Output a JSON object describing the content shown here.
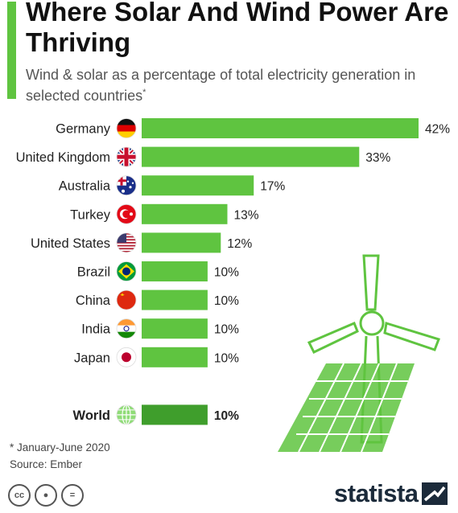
{
  "header": {
    "title": "Where Solar And Wind Power Are Thriving",
    "subtitle": "Wind & solar as a percentage of total electricity generation in selected countries",
    "subtitle_mark": "*"
  },
  "chart_data": {
    "type": "bar",
    "orientation": "horizontal",
    "unit": "%",
    "categories": [
      "Germany",
      "United Kingdom",
      "Australia",
      "Turkey",
      "United States",
      "Brazil",
      "China",
      "India",
      "Japan",
      "World"
    ],
    "values": [
      42,
      33,
      17,
      13,
      12,
      10,
      10,
      10,
      10,
      10
    ],
    "value_labels": [
      "42%",
      "33%",
      "17%",
      "13%",
      "12%",
      "10%",
      "10%",
      "10%",
      "10%",
      "10%"
    ],
    "flag_icons": [
      "germany-flag-icon",
      "uk-flag-icon",
      "australia-flag-icon",
      "turkey-flag-icon",
      "usa-flag-icon",
      "brazil-flag-icon",
      "china-flag-icon",
      "india-flag-icon",
      "japan-flag-icon",
      "globe-icon"
    ],
    "highlight_category": "World",
    "colors": {
      "bar": "#5fc440",
      "highlight_bar": "#3f9e2c"
    },
    "xlim": [
      0,
      42
    ]
  },
  "footer": {
    "note": "* January-June 2020",
    "source": "Source: Ember",
    "brand": "statista"
  }
}
